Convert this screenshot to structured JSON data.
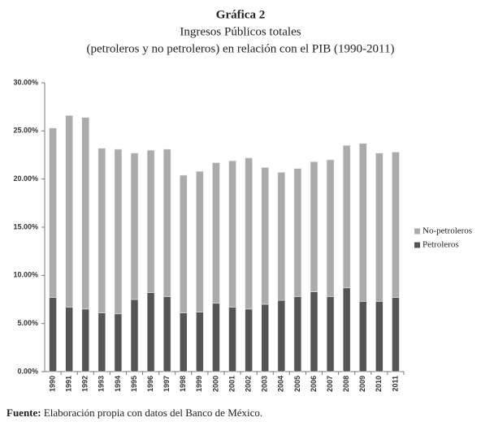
{
  "chart_data": {
    "type": "stacked-bar",
    "title": "Gráfica 2",
    "subtitle": [
      "Ingresos Públicos totales",
      "(petroleros y no petroleros) en relación con el PIB (1990-2011)"
    ],
    "categories": [
      "1990",
      "1991",
      "1992",
      "1993",
      "1994",
      "1995",
      "1996",
      "1997",
      "1998",
      "1999",
      "2000",
      "2001",
      "2002",
      "2003",
      "2004",
      "2005",
      "2006",
      "2007",
      "2008",
      "2009",
      "2010",
      "2011"
    ],
    "series": [
      {
        "name": "Petroleros",
        "color": "#555555",
        "values": [
          7.7,
          6.7,
          6.5,
          6.1,
          6.0,
          7.5,
          8.2,
          7.8,
          6.1,
          6.2,
          7.1,
          6.7,
          6.5,
          7.0,
          7.4,
          7.8,
          8.3,
          7.8,
          8.7,
          7.3,
          7.3,
          7.7
        ]
      },
      {
        "name": "No-petroleros",
        "color": "#ababab",
        "values": [
          17.6,
          19.9,
          19.9,
          17.1,
          17.1,
          15.2,
          14.8,
          15.3,
          14.3,
          14.6,
          14.6,
          15.2,
          15.7,
          14.2,
          13.3,
          13.3,
          13.5,
          14.2,
          14.8,
          16.4,
          15.4,
          15.1
        ]
      }
    ],
    "ylim": [
      0,
      30
    ],
    "yticks": [
      {
        "value": 0,
        "label": "0.00%"
      },
      {
        "value": 5,
        "label": "5.00%"
      },
      {
        "value": 10,
        "label": "10.00%"
      },
      {
        "value": 15,
        "label": "15.00%"
      },
      {
        "value": 20,
        "label": "20.00%"
      },
      {
        "value": 25,
        "label": "25.00%"
      },
      {
        "value": 30,
        "label": "30.00%"
      }
    ],
    "legend": "right"
  },
  "footer": {
    "label": "Fuente:",
    "text": "Elaboración propia con datos del Banco de México."
  }
}
